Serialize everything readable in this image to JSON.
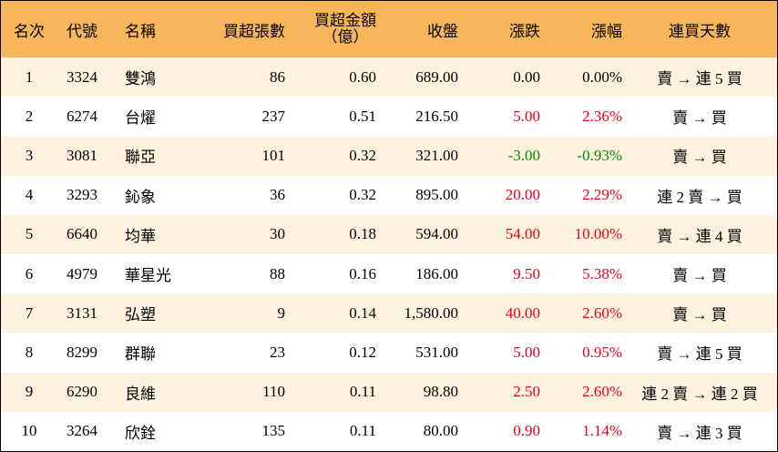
{
  "headers": {
    "rank": "名次",
    "code": "代號",
    "name": "名稱",
    "volume": "買超張數",
    "amount_line1": "買超金額",
    "amount_line2": "（億）",
    "close": "收盤",
    "change": "漲跌",
    "pct": "漲幅",
    "days": "連買天數"
  },
  "colors": {
    "header_bg": "#f8b65a",
    "stripe_bg": "#fdf2dd",
    "up": "#e8001c",
    "down": "#008a00"
  },
  "rows": [
    {
      "rank": "1",
      "code": "3324",
      "name": "雙鴻",
      "volume": "86",
      "amount": "0.60",
      "close": "689.00",
      "change": "0.00",
      "pct": "0.00%",
      "dir": "zero",
      "days": "賣 → 連 5 買"
    },
    {
      "rank": "2",
      "code": "6274",
      "name": "台燿",
      "volume": "237",
      "amount": "0.51",
      "close": "216.50",
      "change": "5.00",
      "pct": "2.36%",
      "dir": "pos",
      "days": "賣 → 買"
    },
    {
      "rank": "3",
      "code": "3081",
      "name": "聯亞",
      "volume": "101",
      "amount": "0.32",
      "close": "321.00",
      "change": "-3.00",
      "pct": "-0.93%",
      "dir": "neg",
      "days": "賣 → 買"
    },
    {
      "rank": "4",
      "code": "3293",
      "name": "鈊象",
      "volume": "36",
      "amount": "0.32",
      "close": "895.00",
      "change": "20.00",
      "pct": "2.29%",
      "dir": "pos",
      "days": "連 2 賣 → 買"
    },
    {
      "rank": "5",
      "code": "6640",
      "name": "均華",
      "volume": "30",
      "amount": "0.18",
      "close": "594.00",
      "change": "54.00",
      "pct": "10.00%",
      "dir": "pos",
      "days": "賣 → 連 4 買"
    },
    {
      "rank": "6",
      "code": "4979",
      "name": "華星光",
      "volume": "88",
      "amount": "0.16",
      "close": "186.00",
      "change": "9.50",
      "pct": "5.38%",
      "dir": "pos",
      "days": "賣 → 買"
    },
    {
      "rank": "7",
      "code": "3131",
      "name": "弘塑",
      "volume": "9",
      "amount": "0.14",
      "close": "1,580.00",
      "change": "40.00",
      "pct": "2.60%",
      "dir": "pos",
      "days": "賣 → 買"
    },
    {
      "rank": "8",
      "code": "8299",
      "name": "群聯",
      "volume": "23",
      "amount": "0.12",
      "close": "531.00",
      "change": "5.00",
      "pct": "0.95%",
      "dir": "pos",
      "days": "賣 → 連 5 買"
    },
    {
      "rank": "9",
      "code": "6290",
      "name": "良維",
      "volume": "110",
      "amount": "0.11",
      "close": "98.80",
      "change": "2.50",
      "pct": "2.60%",
      "dir": "pos",
      "days": "連 2 賣 → 連 2 買"
    },
    {
      "rank": "10",
      "code": "3264",
      "name": "欣銓",
      "volume": "135",
      "amount": "0.11",
      "close": "80.00",
      "change": "0.90",
      "pct": "1.14%",
      "dir": "pos",
      "days": "賣 → 連 3 買"
    }
  ]
}
